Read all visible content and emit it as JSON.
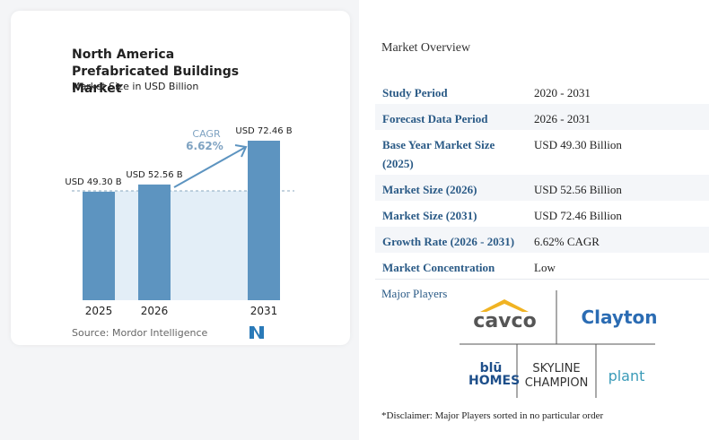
{
  "chart_data": {
    "type": "bar",
    "title": "North America Prefabricated Buildings Market",
    "subtitle": "Market Size in USD Billion",
    "categories": [
      "2025",
      "2026",
      "2031"
    ],
    "values": [
      49.3,
      52.56,
      72.46
    ],
    "value_labels": [
      "USD 49.30 B",
      "USD 52.56 B",
      "USD 72.46 B"
    ],
    "color": "#5d94c0",
    "annotation": {
      "label": "CAGR",
      "value": "6.62%"
    },
    "source": "Source: Mordor Intelligence"
  },
  "overview": {
    "title": "Market Overview",
    "rows": [
      [
        "Study Period",
        "2020 - 2031"
      ],
      [
        "Forecast Data Period",
        "2026 - 2031"
      ],
      [
        "Base Year Market Size (2025)",
        "USD 49.30 Billion"
      ],
      [
        "Market Size (2026)",
        "USD 52.56 Billion"
      ],
      [
        "Market Size (2031)",
        "USD 72.46 Billion"
      ],
      [
        "Growth Rate (2026 - 2031)",
        "6.62% CAGR"
      ],
      [
        "Market Concentration",
        "Low"
      ]
    ],
    "players_title": "Major Players",
    "players": [
      "cavco",
      "Clayton",
      "blū HOMES",
      "SKYLINE CHAMPION",
      "plant"
    ],
    "disclaimer": "*Disclaimer: Major Players sorted in no particular order"
  }
}
